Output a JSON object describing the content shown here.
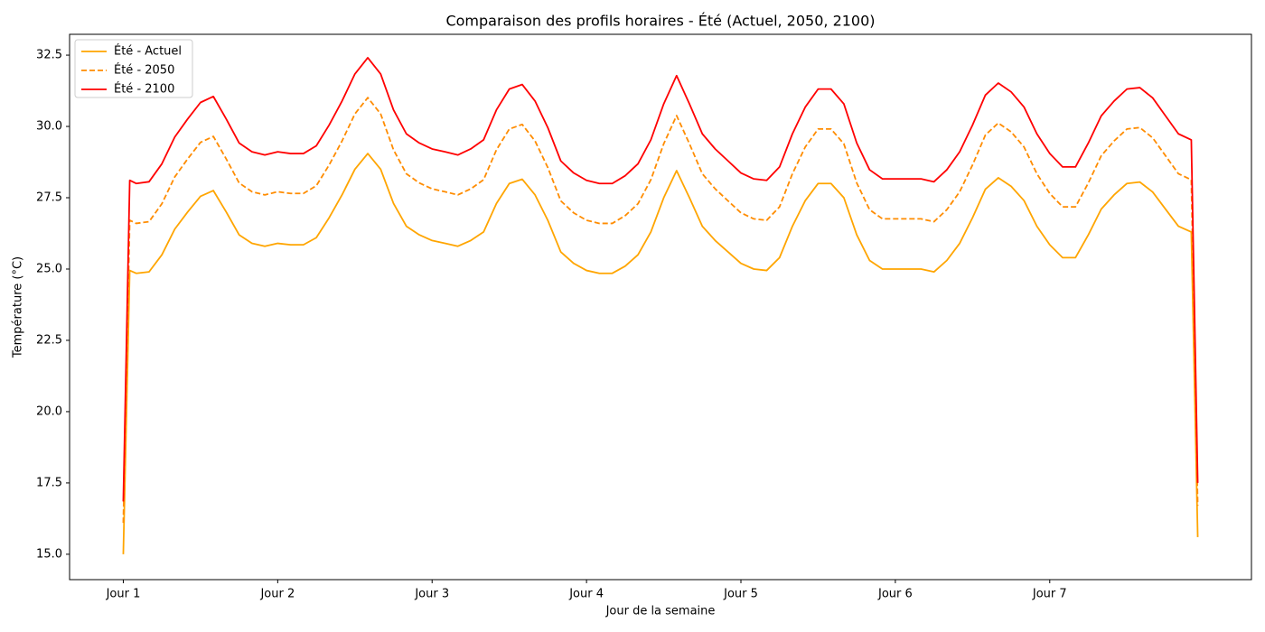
{
  "chart_data": {
    "type": "line",
    "title": "Comparaison des profils horaires - Été (Actuel, 2050, 2100)",
    "xlabel": "Jour de la semaine",
    "ylabel": "Température (°C)",
    "x": [
      0,
      1,
      2,
      4,
      6,
      8,
      10,
      12,
      14,
      16,
      18,
      20,
      22,
      24,
      26,
      28,
      30,
      32,
      34,
      36,
      38,
      40,
      42,
      44,
      46,
      48,
      50,
      52,
      54,
      56,
      58,
      60,
      62,
      64,
      66,
      68,
      70,
      72,
      74,
      76,
      78,
      80,
      82,
      84,
      86,
      88,
      90,
      92,
      94,
      96,
      98,
      100,
      102,
      104,
      106,
      108,
      110,
      112,
      114,
      116,
      118,
      120,
      122,
      124,
      126,
      128,
      130,
      132,
      134,
      136,
      138,
      140,
      142,
      144,
      146,
      148,
      150,
      152,
      154,
      156,
      158,
      160,
      162,
      164,
      166,
      167
    ],
    "series": [
      {
        "name": "Été - Actuel",
        "color": "#ffa500",
        "linestyle": "solid",
        "values": [
          15.0,
          24.95,
          24.85,
          24.9,
          25.5,
          26.4,
          27.0,
          27.55,
          27.75,
          27.0,
          26.2,
          25.9,
          25.8,
          25.9,
          25.85,
          25.85,
          26.1,
          26.8,
          27.6,
          28.5,
          29.05,
          28.5,
          27.3,
          26.5,
          26.2,
          26.0,
          25.9,
          25.8,
          26.0,
          26.3,
          27.3,
          28.0,
          28.15,
          27.6,
          26.7,
          25.6,
          25.2,
          24.95,
          24.85,
          24.85,
          25.1,
          25.5,
          26.3,
          27.5,
          28.45,
          27.5,
          26.5,
          26.0,
          25.6,
          25.2,
          25.0,
          24.95,
          25.4,
          26.5,
          27.4,
          28.0,
          28.0,
          27.5,
          26.2,
          25.3,
          25.0,
          25.0,
          25.0,
          25.0,
          24.9,
          25.3,
          25.9,
          26.8,
          27.8,
          28.2,
          27.9,
          27.4,
          26.5,
          25.85,
          25.4,
          25.4,
          26.2,
          27.1,
          27.6,
          28.0,
          28.05,
          27.7,
          27.1,
          26.5,
          26.3,
          15.6
        ]
      },
      {
        "name": "Été - 2050",
        "color": "#ff8c00",
        "linestyle": "dashed",
        "values": [
          16.1,
          26.71,
          26.6,
          26.66,
          27.29,
          28.23,
          28.86,
          29.44,
          29.65,
          28.86,
          28.02,
          27.71,
          27.6,
          27.71,
          27.65,
          27.65,
          27.92,
          28.65,
          29.49,
          30.44,
          31.01,
          30.44,
          29.18,
          28.34,
          28.02,
          27.81,
          27.71,
          27.6,
          27.81,
          28.13,
          29.18,
          29.91,
          30.07,
          29.49,
          28.55,
          27.39,
          26.97,
          26.71,
          26.6,
          26.6,
          26.87,
          27.29,
          28.13,
          29.39,
          30.38,
          29.39,
          28.34,
          27.81,
          27.39,
          26.97,
          26.76,
          26.71,
          27.18,
          28.34,
          29.28,
          29.91,
          29.91,
          29.39,
          28.02,
          27.08,
          26.76,
          26.76,
          26.76,
          26.76,
          26.66,
          27.08,
          27.71,
          28.65,
          29.7,
          30.12,
          29.81,
          29.28,
          28.34,
          27.65,
          27.18,
          27.18,
          28.02,
          28.97,
          29.49,
          29.91,
          29.96,
          29.6,
          28.97,
          28.34,
          28.13,
          16.7
        ]
      },
      {
        "name": "Été - 2100",
        "color": "#ff0000",
        "linestyle": "solid",
        "values": [
          16.85,
          28.11,
          28.0,
          28.06,
          28.69,
          29.63,
          30.26,
          30.84,
          31.05,
          30.26,
          29.42,
          29.11,
          29.0,
          29.11,
          29.05,
          29.05,
          29.32,
          30.05,
          30.89,
          31.84,
          32.41,
          31.84,
          30.58,
          29.74,
          29.42,
          29.21,
          29.11,
          29.0,
          29.21,
          29.53,
          30.58,
          31.31,
          31.47,
          30.89,
          29.95,
          28.79,
          28.37,
          28.11,
          28.0,
          28.0,
          28.27,
          28.69,
          29.53,
          30.79,
          31.78,
          30.79,
          29.74,
          29.21,
          28.79,
          28.37,
          28.16,
          28.11,
          28.58,
          29.74,
          30.68,
          31.31,
          31.31,
          30.79,
          29.42,
          28.48,
          28.16,
          28.16,
          28.16,
          28.16,
          28.06,
          28.48,
          29.11,
          30.05,
          31.1,
          31.52,
          31.21,
          30.68,
          29.74,
          29.05,
          28.58,
          28.58,
          29.42,
          30.37,
          30.89,
          31.31,
          31.36,
          31.0,
          30.37,
          29.74,
          29.53,
          17.5
        ]
      }
    ],
    "xlim": [
      -8.35,
      175.35
    ],
    "xticks": [
      {
        "value": 0,
        "label": "Jour 1"
      },
      {
        "value": 24,
        "label": "Jour 2"
      },
      {
        "value": 48,
        "label": "Jour 3"
      },
      {
        "value": 72,
        "label": "Jour 4"
      },
      {
        "value": 96,
        "label": "Jour 5"
      },
      {
        "value": 120,
        "label": "Jour 6"
      },
      {
        "value": 144,
        "label": "Jour 7"
      }
    ],
    "ylim": [
      14.11,
      33.23
    ],
    "yticks": [
      {
        "value": 15,
        "label": "15.0"
      },
      17.5,
      {
        "value": 20,
        "label": "20.0"
      },
      22.5,
      {
        "value": 25,
        "label": "25.0"
      },
      27.5,
      {
        "value": 30,
        "label": "30.0"
      },
      32.5
    ],
    "grid": false,
    "legend": "upper left"
  }
}
